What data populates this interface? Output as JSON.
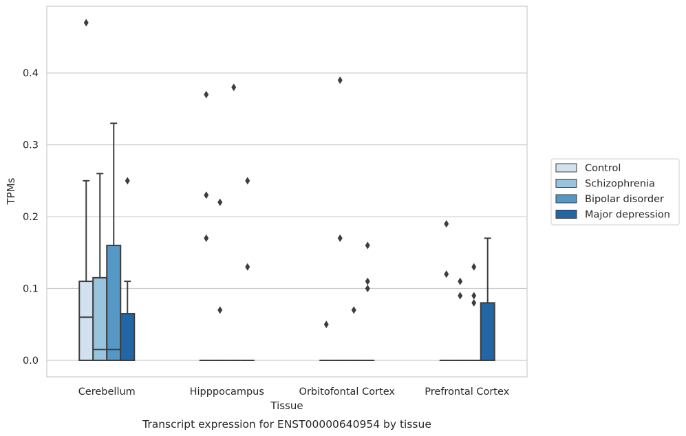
{
  "chart_data": {
    "type": "box",
    "title": "",
    "xlabel": "Tissue",
    "ylabel": "TPMs",
    "caption": "Transcript expression for ENST00000640954 by tissue",
    "categories": [
      "Cerebellum",
      "Hipppocampus",
      "Orbitofontal Cortex",
      "Prefrontal Cortex"
    ],
    "ylim": [
      -0.023,
      0.493
    ],
    "yticks": [
      0.0,
      0.1,
      0.2,
      0.3,
      0.4
    ],
    "ytick_labels": [
      "0.0",
      "0.1",
      "0.2",
      "0.3",
      "0.4"
    ],
    "grid": "horizontal",
    "legend_position": "center-right, outside plot",
    "series": [
      {
        "name": "Control",
        "color": "#d1e1ef",
        "boxes": [
          {
            "q1": 0.0,
            "median": 0.06,
            "q3": 0.11,
            "whisker_low": 0.0,
            "whisker_high": 0.25,
            "fliers": [
              0.47
            ]
          },
          {
            "q1": 0.0,
            "median": 0.0,
            "q3": 0.0,
            "whisker_low": 0.0,
            "whisker_high": 0.0,
            "fliers": [
              0.37,
              0.23,
              0.17
            ]
          },
          {
            "q1": 0.0,
            "median": 0.0,
            "q3": 0.0,
            "whisker_low": 0.0,
            "whisker_high": 0.0,
            "fliers": [
              0.05
            ]
          },
          {
            "q1": 0.0,
            "median": 0.0,
            "q3": 0.0,
            "whisker_low": 0.0,
            "whisker_high": 0.0,
            "fliers": [
              0.19,
              0.12
            ]
          }
        ]
      },
      {
        "name": "Schizophrenia",
        "color": "#9ac3dd",
        "boxes": [
          {
            "q1": 0.0,
            "median": 0.015,
            "q3": 0.115,
            "whisker_low": 0.0,
            "whisker_high": 0.26,
            "fliers": []
          },
          {
            "q1": 0.0,
            "median": 0.0,
            "q3": 0.0,
            "whisker_low": 0.0,
            "whisker_high": 0.0,
            "fliers": [
              0.22,
              0.07
            ]
          },
          {
            "q1": 0.0,
            "median": 0.0,
            "q3": 0.0,
            "whisker_low": 0.0,
            "whisker_high": 0.0,
            "fliers": [
              0.39,
              0.17
            ]
          },
          {
            "q1": 0.0,
            "median": 0.0,
            "q3": 0.0,
            "whisker_low": 0.0,
            "whisker_high": 0.0,
            "fliers": [
              0.11,
              0.09
            ]
          }
        ]
      },
      {
        "name": "Bipolar disorder",
        "color": "#5597c5",
        "boxes": [
          {
            "q1": 0.0,
            "median": 0.015,
            "q3": 0.16,
            "whisker_low": 0.0,
            "whisker_high": 0.33,
            "fliers": []
          },
          {
            "q1": 0.0,
            "median": 0.0,
            "q3": 0.0,
            "whisker_low": 0.0,
            "whisker_high": 0.0,
            "fliers": [
              0.38
            ]
          },
          {
            "q1": 0.0,
            "median": 0.0,
            "q3": 0.0,
            "whisker_low": 0.0,
            "whisker_high": 0.0,
            "fliers": [
              0.07
            ]
          },
          {
            "q1": 0.0,
            "median": 0.0,
            "q3": 0.0,
            "whisker_low": 0.0,
            "whisker_high": 0.0,
            "fliers": [
              0.13,
              0.09,
              0.08
            ]
          }
        ]
      },
      {
        "name": "Major depression",
        "color": "#2266a6",
        "boxes": [
          {
            "q1": 0.0,
            "median": 0.0,
            "q3": 0.065,
            "whisker_low": 0.0,
            "whisker_high": 0.11,
            "fliers": [
              0.25
            ]
          },
          {
            "q1": 0.0,
            "median": 0.0,
            "q3": 0.0,
            "whisker_low": 0.0,
            "whisker_high": 0.0,
            "fliers": [
              0.25,
              0.13
            ]
          },
          {
            "q1": 0.0,
            "median": 0.0,
            "q3": 0.0,
            "whisker_low": 0.0,
            "whisker_high": 0.0,
            "fliers": [
              0.16,
              0.11,
              0.1
            ]
          },
          {
            "q1": 0.0,
            "median": 0.0,
            "q3": 0.08,
            "whisker_low": 0.0,
            "whisker_high": 0.17,
            "fliers": []
          }
        ]
      }
    ]
  }
}
